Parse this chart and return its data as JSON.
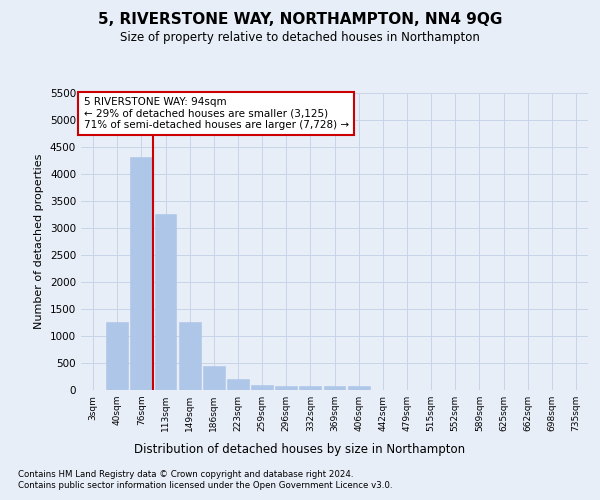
{
  "title": "5, RIVERSTONE WAY, NORTHAMPTON, NN4 9QG",
  "subtitle": "Size of property relative to detached houses in Northampton",
  "xlabel": "Distribution of detached houses by size in Northampton",
  "ylabel": "Number of detached properties",
  "categories": [
    "3sqm",
    "40sqm",
    "76sqm",
    "113sqm",
    "149sqm",
    "186sqm",
    "223sqm",
    "259sqm",
    "296sqm",
    "332sqm",
    "369sqm",
    "406sqm",
    "442sqm",
    "479sqm",
    "515sqm",
    "552sqm",
    "589sqm",
    "625sqm",
    "662sqm",
    "698sqm",
    "735sqm"
  ],
  "values": [
    0,
    1250,
    4300,
    3250,
    1250,
    450,
    200,
    100,
    75,
    75,
    75,
    75,
    0,
    0,
    0,
    0,
    0,
    0,
    0,
    0,
    0
  ],
  "bar_color": "#aec6e8",
  "bar_edgecolor": "#aec6e8",
  "property_line_x": 2.5,
  "property_label": "5 RIVERSTONE WAY: 94sqm",
  "annotation_line1": "← 29% of detached houses are smaller (3,125)",
  "annotation_line2": "71% of semi-detached houses are larger (7,728) →",
  "annotation_box_facecolor": "#ffffff",
  "annotation_box_edgecolor": "#cc0000",
  "red_line_color": "#cc0000",
  "grid_color": "#c8d4e8",
  "ylim": [
    0,
    5500
  ],
  "yticks": [
    0,
    500,
    1000,
    1500,
    2000,
    2500,
    3000,
    3500,
    4000,
    4500,
    5000,
    5500
  ],
  "footnote1": "Contains HM Land Registry data © Crown copyright and database right 2024.",
  "footnote2": "Contains public sector information licensed under the Open Government Licence v3.0.",
  "bg_color": "#e8eef8",
  "plot_bg_color": "#e8eef8"
}
